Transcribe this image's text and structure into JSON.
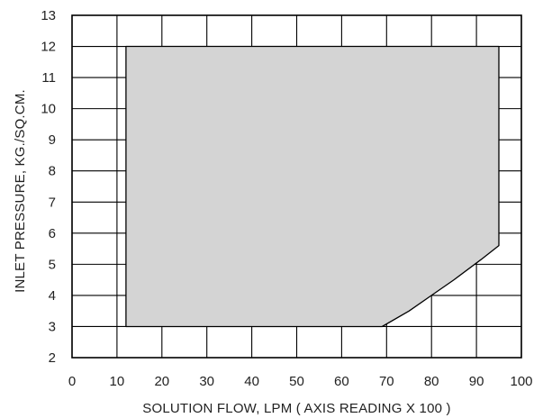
{
  "chart_data": {
    "type": "area",
    "xlabel": "SOLUTION FLOW, LPM ( AXIS READING X 100 )",
    "ylabel": "INLET PRESSURE, KG./SQ.CM.",
    "xlim": [
      0,
      100
    ],
    "ylim": [
      2,
      13
    ],
    "x_ticks": [
      0,
      10,
      20,
      30,
      40,
      50,
      60,
      70,
      80,
      90,
      100
    ],
    "y_ticks": [
      2,
      3,
      4,
      5,
      6,
      7,
      8,
      9,
      10,
      11,
      12,
      13
    ],
    "grid": true,
    "legend": "none",
    "region": [
      {
        "x": 12,
        "y": 12
      },
      {
        "x": 95,
        "y": 12
      },
      {
        "x": 95,
        "y": 5.6
      },
      {
        "x": 91,
        "y": 5.15
      },
      {
        "x": 85,
        "y": 4.5
      },
      {
        "x": 80,
        "y": 4.0
      },
      {
        "x": 75,
        "y": 3.5
      },
      {
        "x": 69,
        "y": 3.0
      },
      {
        "x": 12,
        "y": 3.0
      }
    ],
    "colors": {
      "fill": "#d4d4d4",
      "line": "#000000",
      "grid": "#000000",
      "text": "#222222"
    }
  }
}
